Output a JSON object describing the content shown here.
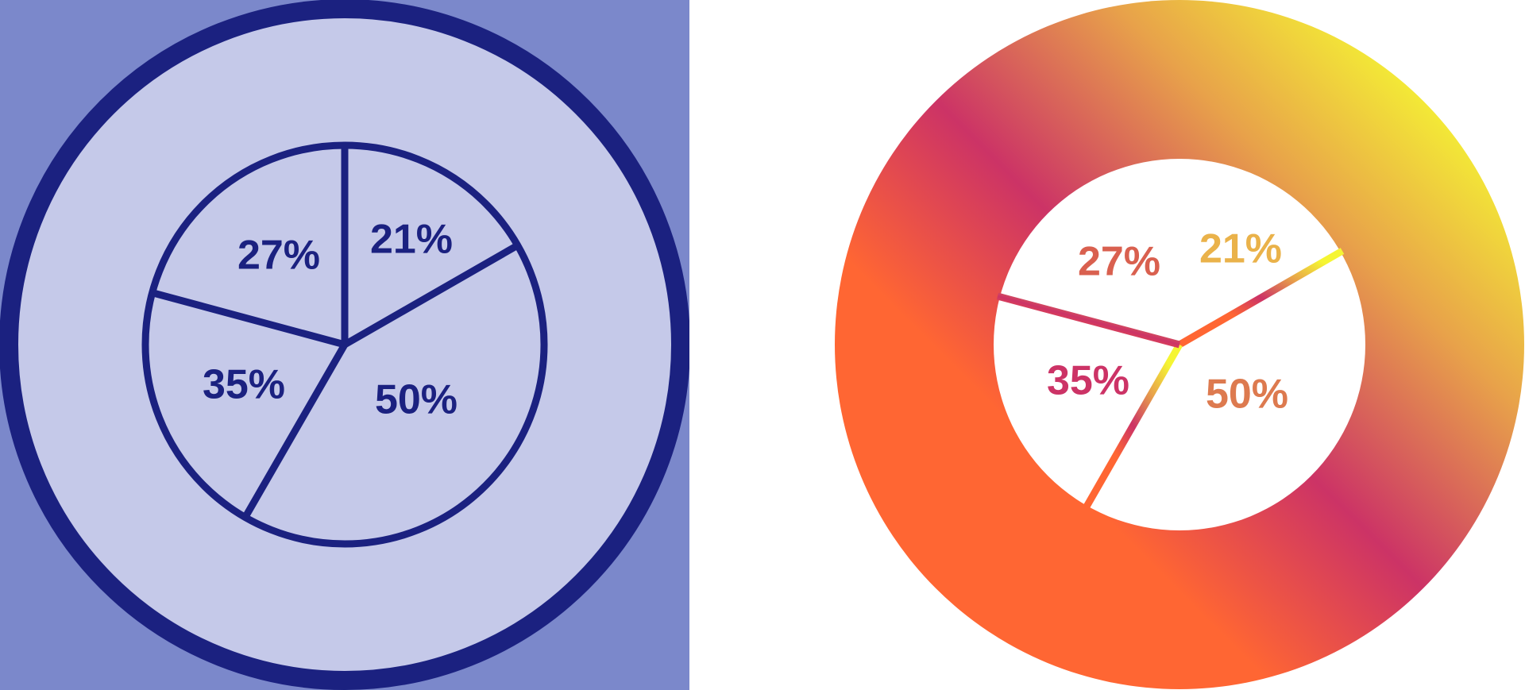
{
  "colors": {
    "left_background": "#7b88cb",
    "left_face": "#c5c9e9",
    "left_ink": "#1b2180",
    "right_gradient": [
      "#ff6633",
      "#cc3366",
      "#e8a24a",
      "#f5f533"
    ],
    "right_face": "#ffffff"
  },
  "icons": [
    {
      "name": "pie-chart-icon-outline",
      "slices": [
        {
          "label": "21%"
        },
        {
          "label": "50%"
        },
        {
          "label": "35%"
        },
        {
          "label": "27%"
        }
      ]
    },
    {
      "name": "pie-chart-icon-gradient",
      "slices": [
        {
          "label": "21%"
        },
        {
          "label": "50%"
        },
        {
          "label": "35%"
        },
        {
          "label": "27%"
        }
      ]
    }
  ]
}
